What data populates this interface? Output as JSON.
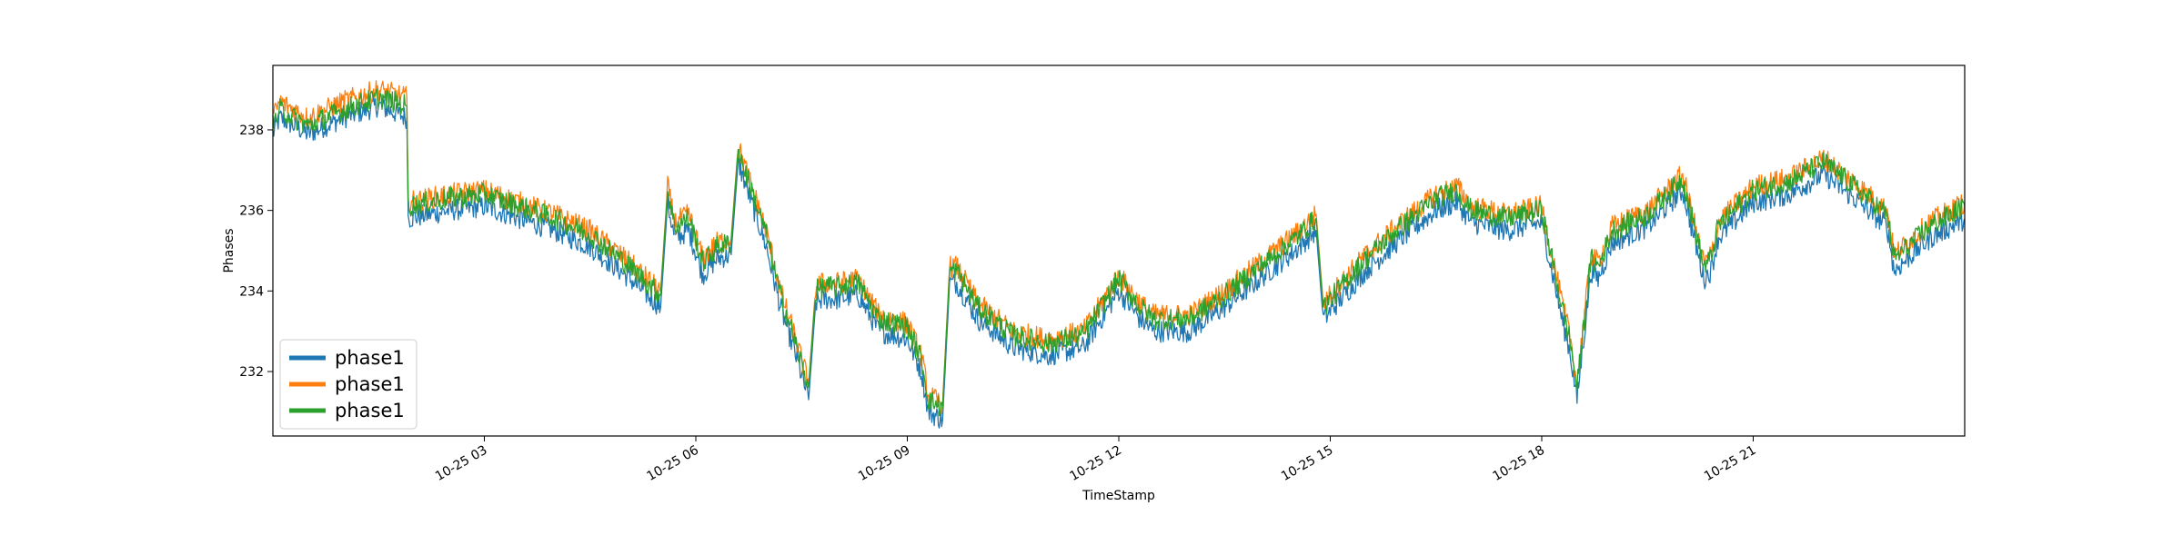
{
  "chart_data": {
    "type": "line",
    "title": "",
    "xlabel": "TimeStamp",
    "ylabel": "Phases",
    "x_unit": "hours",
    "xlim": [
      0.0,
      24.0
    ],
    "ylim": [
      230.4,
      239.6
    ],
    "x_ticks": [
      {
        "value": 3,
        "label": "10-25 03"
      },
      {
        "value": 6,
        "label": "10-25 06"
      },
      {
        "value": 9,
        "label": "10-25 09"
      },
      {
        "value": 12,
        "label": "10-25 12"
      },
      {
        "value": 15,
        "label": "10-25 15"
      },
      {
        "value": 18,
        "label": "10-25 18"
      },
      {
        "value": 21,
        "label": "10-25 21"
      }
    ],
    "y_ticks": [
      {
        "value": 232,
        "label": "232"
      },
      {
        "value": 234,
        "label": "234"
      },
      {
        "value": 236,
        "label": "236"
      },
      {
        "value": 238,
        "label": "238"
      }
    ],
    "grid": false,
    "legend_position": "lower-left",
    "series": [
      {
        "name": "phase1",
        "color": "#1f77b4",
        "x": [
          0.0,
          0.1,
          0.5,
          1.0,
          1.5,
          1.9,
          1.92,
          2.5,
          3.0,
          3.5,
          4.0,
          4.5,
          5.0,
          5.5,
          5.6,
          5.7,
          5.9,
          6.1,
          6.3,
          6.5,
          6.6,
          7.0,
          7.2,
          7.4,
          7.6,
          7.7,
          7.8,
          8.0,
          8.3,
          8.6,
          9.0,
          9.2,
          9.3,
          9.5,
          9.6,
          9.7,
          10.0,
          10.5,
          11.0,
          11.5,
          12.0,
          12.3,
          12.5,
          13.0,
          13.5,
          14.0,
          14.5,
          14.8,
          14.9,
          15.0,
          15.5,
          16.0,
          16.5,
          16.8,
          17.0,
          17.5,
          18.0,
          18.3,
          18.4,
          18.5,
          18.7,
          18.8,
          19.0,
          19.5,
          20.0,
          20.3,
          20.4,
          20.5,
          21.0,
          21.5,
          22.0,
          22.5,
          22.9,
          23.0,
          23.5,
          24.0
        ],
        "y": [
          237.9,
          238.3,
          237.9,
          238.3,
          238.6,
          238.3,
          235.8,
          236.0,
          236.1,
          235.8,
          235.5,
          235.1,
          234.4,
          233.6,
          236.2,
          235.3,
          235.5,
          234.4,
          234.8,
          234.9,
          237.2,
          235.1,
          233.6,
          232.5,
          231.3,
          233.7,
          233.8,
          233.8,
          233.9,
          233.0,
          232.8,
          232.0,
          231.0,
          230.8,
          234.2,
          234.2,
          233.3,
          232.6,
          232.4,
          232.6,
          234.0,
          233.3,
          233.0,
          233.0,
          233.6,
          234.3,
          235.0,
          235.5,
          233.3,
          233.5,
          234.5,
          235.3,
          236.0,
          236.2,
          235.7,
          235.5,
          235.7,
          233.2,
          232.5,
          231.3,
          234.5,
          234.3,
          235.2,
          235.6,
          236.5,
          234.3,
          234.5,
          235.3,
          236.2,
          236.4,
          236.9,
          236.2,
          235.6,
          234.5,
          235.3,
          235.8
        ]
      },
      {
        "name": "phase1",
        "color": "#ff7f0e",
        "x": [
          0.0,
          0.1,
          0.5,
          1.0,
          1.5,
          1.9,
          1.92,
          2.5,
          3.0,
          3.5,
          4.0,
          4.5,
          5.0,
          5.5,
          5.6,
          5.7,
          5.9,
          6.1,
          6.3,
          6.5,
          6.6,
          7.0,
          7.2,
          7.4,
          7.6,
          7.7,
          7.8,
          8.0,
          8.3,
          8.6,
          9.0,
          9.2,
          9.3,
          9.5,
          9.6,
          9.7,
          10.0,
          10.5,
          11.0,
          11.5,
          12.0,
          12.3,
          12.5,
          13.0,
          13.5,
          14.0,
          14.5,
          14.8,
          14.9,
          15.0,
          15.5,
          16.0,
          16.5,
          16.8,
          17.0,
          17.5,
          18.0,
          18.3,
          18.4,
          18.5,
          18.7,
          18.8,
          19.0,
          19.5,
          20.0,
          20.3,
          20.4,
          20.5,
          21.0,
          21.5,
          22.0,
          22.5,
          22.9,
          23.0,
          23.5,
          24.0
        ],
        "y": [
          238.3,
          238.7,
          238.3,
          238.7,
          239.0,
          238.8,
          236.2,
          236.4,
          236.5,
          236.2,
          235.9,
          235.5,
          234.8,
          234.0,
          236.6,
          235.7,
          235.9,
          234.8,
          235.2,
          235.3,
          237.6,
          235.5,
          234.0,
          232.9,
          231.7,
          234.1,
          234.2,
          234.2,
          234.3,
          233.4,
          233.2,
          232.4,
          231.4,
          231.2,
          234.6,
          234.6,
          233.7,
          233.0,
          232.8,
          233.0,
          234.4,
          233.7,
          233.4,
          233.4,
          234.0,
          234.7,
          235.4,
          235.9,
          233.7,
          233.9,
          234.9,
          235.7,
          236.4,
          236.6,
          236.1,
          235.9,
          236.1,
          233.6,
          232.9,
          231.7,
          234.9,
          234.7,
          235.6,
          236.0,
          236.9,
          234.7,
          234.9,
          235.7,
          236.6,
          236.8,
          237.3,
          236.6,
          236.0,
          234.9,
          235.7,
          236.2
        ]
      },
      {
        "name": "phase1",
        "color": "#2ca02c",
        "x": [
          0.0,
          0.1,
          0.5,
          1.0,
          1.5,
          1.9,
          1.92,
          2.5,
          3.0,
          3.5,
          4.0,
          4.5,
          5.0,
          5.5,
          5.6,
          5.7,
          5.9,
          6.1,
          6.3,
          6.5,
          6.6,
          7.0,
          7.2,
          7.4,
          7.6,
          7.7,
          7.8,
          8.0,
          8.3,
          8.6,
          9.0,
          9.2,
          9.3,
          9.5,
          9.6,
          9.7,
          10.0,
          10.5,
          11.0,
          11.5,
          12.0,
          12.3,
          12.5,
          13.0,
          13.5,
          14.0,
          14.5,
          14.8,
          14.9,
          15.0,
          15.5,
          16.0,
          16.5,
          16.8,
          17.0,
          17.5,
          18.0,
          18.3,
          18.4,
          18.5,
          18.7,
          18.8,
          19.0,
          19.5,
          20.0,
          20.3,
          20.4,
          20.5,
          21.0,
          21.5,
          22.0,
          22.5,
          22.9,
          23.0,
          23.5,
          24.0
        ],
        "y": [
          238.1,
          238.5,
          238.1,
          238.5,
          238.8,
          238.6,
          236.1,
          236.3,
          236.4,
          236.1,
          235.8,
          235.4,
          234.7,
          233.9,
          236.5,
          235.6,
          235.8,
          234.7,
          235.1,
          235.2,
          237.5,
          235.4,
          233.9,
          232.8,
          231.6,
          234.0,
          234.1,
          234.1,
          234.2,
          233.3,
          233.1,
          232.3,
          231.3,
          231.1,
          234.5,
          234.5,
          233.6,
          232.9,
          232.7,
          232.9,
          234.3,
          233.6,
          233.3,
          233.3,
          233.9,
          234.6,
          235.3,
          235.8,
          233.6,
          233.8,
          234.8,
          235.6,
          236.3,
          236.5,
          236.0,
          235.8,
          236.0,
          233.5,
          232.8,
          231.6,
          234.8,
          234.6,
          235.5,
          235.9,
          236.8,
          234.6,
          234.8,
          235.6,
          236.5,
          236.7,
          237.2,
          236.5,
          235.9,
          234.8,
          235.6,
          236.1
        ]
      }
    ]
  }
}
